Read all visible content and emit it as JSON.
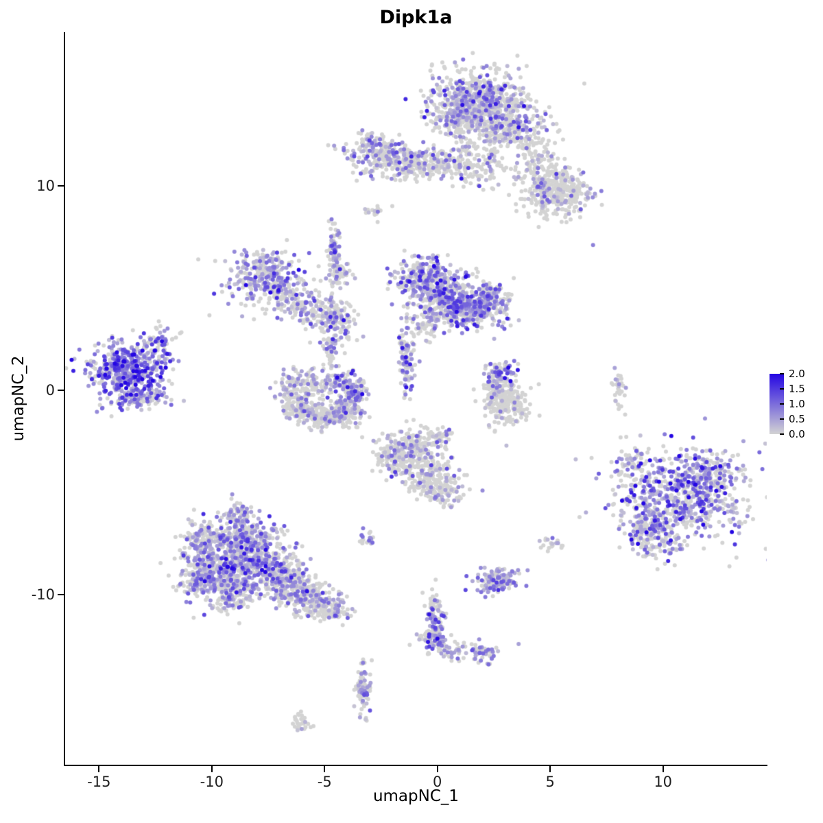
{
  "title": "Dipk1a",
  "axes": {
    "x": {
      "label": "umapNC_1",
      "ticks": [
        -15,
        -10,
        -5,
        0,
        5,
        10
      ]
    },
    "y": {
      "label": "umapNC_2",
      "ticks": [
        -10,
        0,
        10
      ]
    }
  },
  "legend": {
    "ticks": [
      "2.0",
      "1.5",
      "1.0",
      "0.5",
      "0.0"
    ],
    "min": 0,
    "max": 2,
    "color_low": "#D3D3D3",
    "color_high": "#2406E3"
  },
  "chart_data": {
    "type": "scatter",
    "title": "Dipk1a",
    "xlabel": "umapNC_1",
    "ylabel": "umapNC_2",
    "xlim": [
      -16.5,
      14.6
    ],
    "ylim": [
      -18.3,
      17.5
    ],
    "grid": false,
    "legend_position": "right",
    "point_radius": 3,
    "seed": 42,
    "cluster_fields": [
      "cx",
      "cy",
      "sx",
      "sy",
      "n",
      "colored_fraction",
      "mean_expression"
    ],
    "clusters": [
      [
        1.8,
        14.2,
        1.1,
        0.75,
        600,
        0.38,
        0.7
      ],
      [
        2.9,
        13.0,
        0.9,
        0.6,
        250,
        0.3,
        0.6
      ],
      [
        1.0,
        13.3,
        0.6,
        0.6,
        150,
        0.3,
        0.6
      ],
      [
        4.3,
        11.6,
        0.5,
        0.7,
        120,
        0.2,
        0.5
      ],
      [
        5.0,
        10.3,
        0.55,
        0.5,
        140,
        0.18,
        0.5
      ],
      [
        5.3,
        9.3,
        0.7,
        0.5,
        200,
        0.15,
        0.5
      ],
      [
        6.0,
        9.9,
        0.4,
        0.35,
        60,
        0.15,
        0.5
      ],
      [
        -2.4,
        11.4,
        0.9,
        0.45,
        230,
        0.32,
        0.6
      ],
      [
        -1.0,
        11.0,
        0.5,
        0.4,
        120,
        0.3,
        0.6
      ],
      [
        0.3,
        11.2,
        0.5,
        0.35,
        90,
        0.3,
        0.6
      ],
      [
        1.3,
        11.0,
        0.35,
        0.5,
        60,
        0.25,
        0.5
      ],
      [
        2.3,
        11.3,
        0.25,
        0.8,
        60,
        0.25,
        0.5
      ],
      [
        -3.0,
        12.1,
        0.3,
        0.3,
        40,
        0.3,
        0.5
      ],
      [
        -2.8,
        8.7,
        0.25,
        0.2,
        18,
        0.1,
        0.4
      ],
      [
        -7.7,
        5.6,
        0.8,
        0.6,
        280,
        0.5,
        0.75
      ],
      [
        -6.6,
        4.7,
        0.5,
        0.4,
        90,
        0.4,
        0.6
      ],
      [
        -4.55,
        6.9,
        0.15,
        0.7,
        70,
        0.45,
        0.7
      ],
      [
        -4.4,
        5.6,
        0.3,
        0.4,
        50,
        0.3,
        0.5
      ],
      [
        -5.3,
        3.8,
        0.8,
        0.35,
        150,
        0.4,
        0.6
      ],
      [
        -4.4,
        3.2,
        0.4,
        0.4,
        80,
        0.35,
        0.6
      ],
      [
        -4.7,
        2.0,
        0.25,
        0.5,
        40,
        0.3,
        0.5
      ],
      [
        -6.4,
        0.1,
        0.35,
        0.45,
        90,
        0.3,
        0.5
      ],
      [
        -6.0,
        -0.9,
        0.4,
        0.35,
        110,
        0.2,
        0.5
      ],
      [
        -5.0,
        -1.3,
        0.5,
        0.3,
        140,
        0.2,
        0.5
      ],
      [
        -4.0,
        -1.0,
        0.4,
        0.35,
        110,
        0.3,
        0.5
      ],
      [
        -3.7,
        -0.1,
        0.3,
        0.4,
        90,
        0.5,
        0.7
      ],
      [
        -4.4,
        0.5,
        0.4,
        0.3,
        70,
        0.45,
        0.7
      ],
      [
        -5.5,
        0.4,
        0.35,
        0.35,
        60,
        0.3,
        0.5
      ],
      [
        -0.7,
        5.5,
        0.6,
        0.55,
        220,
        0.5,
        0.75
      ],
      [
        0.3,
        4.6,
        0.7,
        0.6,
        300,
        0.5,
        0.75
      ],
      [
        1.6,
        4.0,
        0.6,
        0.5,
        250,
        0.55,
        0.75
      ],
      [
        2.4,
        4.4,
        0.4,
        0.4,
        110,
        0.5,
        0.7
      ],
      [
        -1.35,
        1.6,
        0.18,
        1.0,
        110,
        0.45,
        0.7
      ],
      [
        -0.3,
        3.3,
        0.4,
        0.4,
        70,
        0.35,
        0.6
      ],
      [
        -13.7,
        0.9,
        0.85,
        0.75,
        480,
        0.72,
        1.0
      ],
      [
        -12.4,
        2.2,
        0.35,
        0.45,
        60,
        0.5,
        0.8
      ],
      [
        -13.3,
        -0.4,
        0.6,
        0.3,
        70,
        0.4,
        0.7
      ],
      [
        2.8,
        0.8,
        0.35,
        0.3,
        80,
        0.55,
        0.8
      ],
      [
        3.05,
        -0.6,
        0.5,
        0.55,
        240,
        0.06,
        0.5
      ],
      [
        2.45,
        0.1,
        0.2,
        0.3,
        40,
        0.3,
        0.5
      ],
      [
        -9.3,
        -8.6,
        0.9,
        0.8,
        450,
        0.5,
        0.7
      ],
      [
        -8.3,
        -7.5,
        0.7,
        0.6,
        280,
        0.45,
        0.7
      ],
      [
        -7.3,
        -8.8,
        0.7,
        0.6,
        260,
        0.45,
        0.7
      ],
      [
        -6.3,
        -9.7,
        0.6,
        0.5,
        180,
        0.4,
        0.6
      ],
      [
        -5.3,
        -10.3,
        0.5,
        0.4,
        130,
        0.35,
        0.6
      ],
      [
        -10.2,
        -7.3,
        0.5,
        0.5,
        140,
        0.4,
        0.6
      ],
      [
        -10.4,
        -9.4,
        0.5,
        0.5,
        130,
        0.4,
        0.6
      ],
      [
        -8.9,
        -6.2,
        0.4,
        0.4,
        80,
        0.4,
        0.6
      ],
      [
        -4.6,
        -10.8,
        0.4,
        0.3,
        70,
        0.3,
        0.5
      ],
      [
        -9.0,
        -10.0,
        0.5,
        0.4,
        100,
        0.4,
        0.6
      ],
      [
        -3.2,
        -7.2,
        0.2,
        0.2,
        20,
        0.5,
        0.7
      ],
      [
        -1.2,
        -2.9,
        0.6,
        0.5,
        200,
        0.22,
        0.55
      ],
      [
        -0.4,
        -4.2,
        0.55,
        0.5,
        180,
        0.22,
        0.55
      ],
      [
        0.3,
        -5.0,
        0.4,
        0.35,
        80,
        0.2,
        0.5
      ],
      [
        -2.0,
        -3.3,
        0.45,
        0.4,
        100,
        0.2,
        0.5
      ],
      [
        0.1,
        -2.3,
        0.3,
        0.3,
        50,
        0.2,
        0.5
      ],
      [
        5.2,
        -7.5,
        0.3,
        0.2,
        18,
        0.15,
        0.4
      ],
      [
        10.8,
        -5.2,
        1.4,
        1.2,
        650,
        0.55,
        0.9
      ],
      [
        9.3,
        -6.6,
        0.6,
        0.6,
        120,
        0.5,
        0.8
      ],
      [
        12.2,
        -4.2,
        0.6,
        0.6,
        120,
        0.5,
        0.8
      ],
      [
        8.6,
        -3.6,
        0.35,
        0.4,
        50,
        0.4,
        0.7
      ],
      [
        9.8,
        -7.6,
        0.5,
        0.35,
        60,
        0.45,
        0.8
      ],
      [
        8.0,
        0.1,
        0.15,
        0.45,
        30,
        0.2,
        0.5
      ],
      [
        2.6,
        -9.3,
        0.55,
        0.35,
        130,
        0.5,
        0.7
      ],
      [
        -0.1,
        -11.2,
        0.18,
        0.7,
        110,
        0.4,
        0.65
      ],
      [
        -0.2,
        -12.2,
        0.3,
        0.3,
        60,
        0.4,
        0.65
      ],
      [
        0.9,
        -12.7,
        0.5,
        0.25,
        40,
        0.3,
        0.5
      ],
      [
        2.1,
        -12.9,
        0.3,
        0.25,
        45,
        0.5,
        0.7
      ],
      [
        -3.3,
        -14.7,
        0.15,
        0.65,
        85,
        0.45,
        0.7
      ],
      [
        -6.1,
        -16.2,
        0.25,
        0.25,
        30,
        0.15,
        0.4
      ]
    ],
    "singletons": [
      [
        -10.6,
        6.4,
        0
      ],
      [
        6.9,
        7.1,
        0.8
      ],
      [
        8.6,
        -7.3,
        2.0
      ],
      [
        4.0,
        -8.8,
        0.6
      ],
      [
        2.0,
        -4.9,
        0.7
      ],
      [
        -2.0,
        9.0,
        0
      ],
      [
        6.3,
        -6.2,
        0
      ],
      [
        3.6,
        -12.4,
        0.5
      ],
      [
        -12.1,
        2.9,
        0.6
      ],
      [
        5.5,
        -7.7,
        0
      ]
    ]
  }
}
